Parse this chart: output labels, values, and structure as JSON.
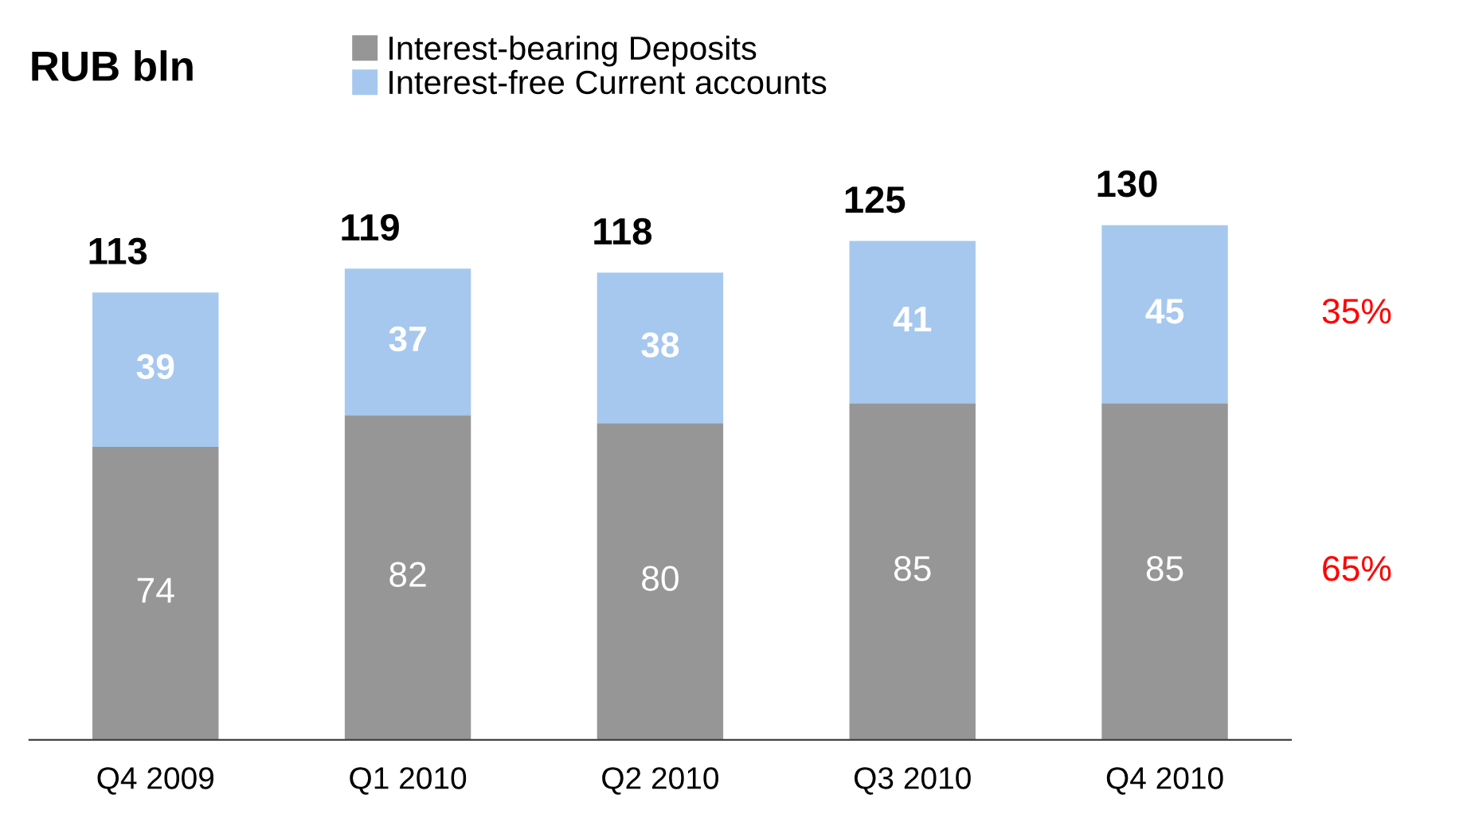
{
  "chart_data": {
    "type": "bar",
    "title": "RUB bln",
    "stacked": true,
    "data_labels": true,
    "legend": "top",
    "grid": false,
    "categories": [
      "Q4 2009",
      "Q1 2010",
      "Q2 2010",
      "Q3 2010",
      "Q4 2010"
    ],
    "series": [
      {
        "name": "Interest-bearing Deposits",
        "color": "#969696",
        "values": [
          74,
          82,
          80,
          85,
          85
        ]
      },
      {
        "name": "Interest-free Current accounts",
        "color": "#a6c8ee",
        "values": [
          39,
          37,
          38,
          41,
          45
        ]
      }
    ],
    "totals": [
      "113",
      "119",
      "118",
      "125",
      "130"
    ],
    "annotations": [
      "35%",
      "65%"
    ]
  }
}
